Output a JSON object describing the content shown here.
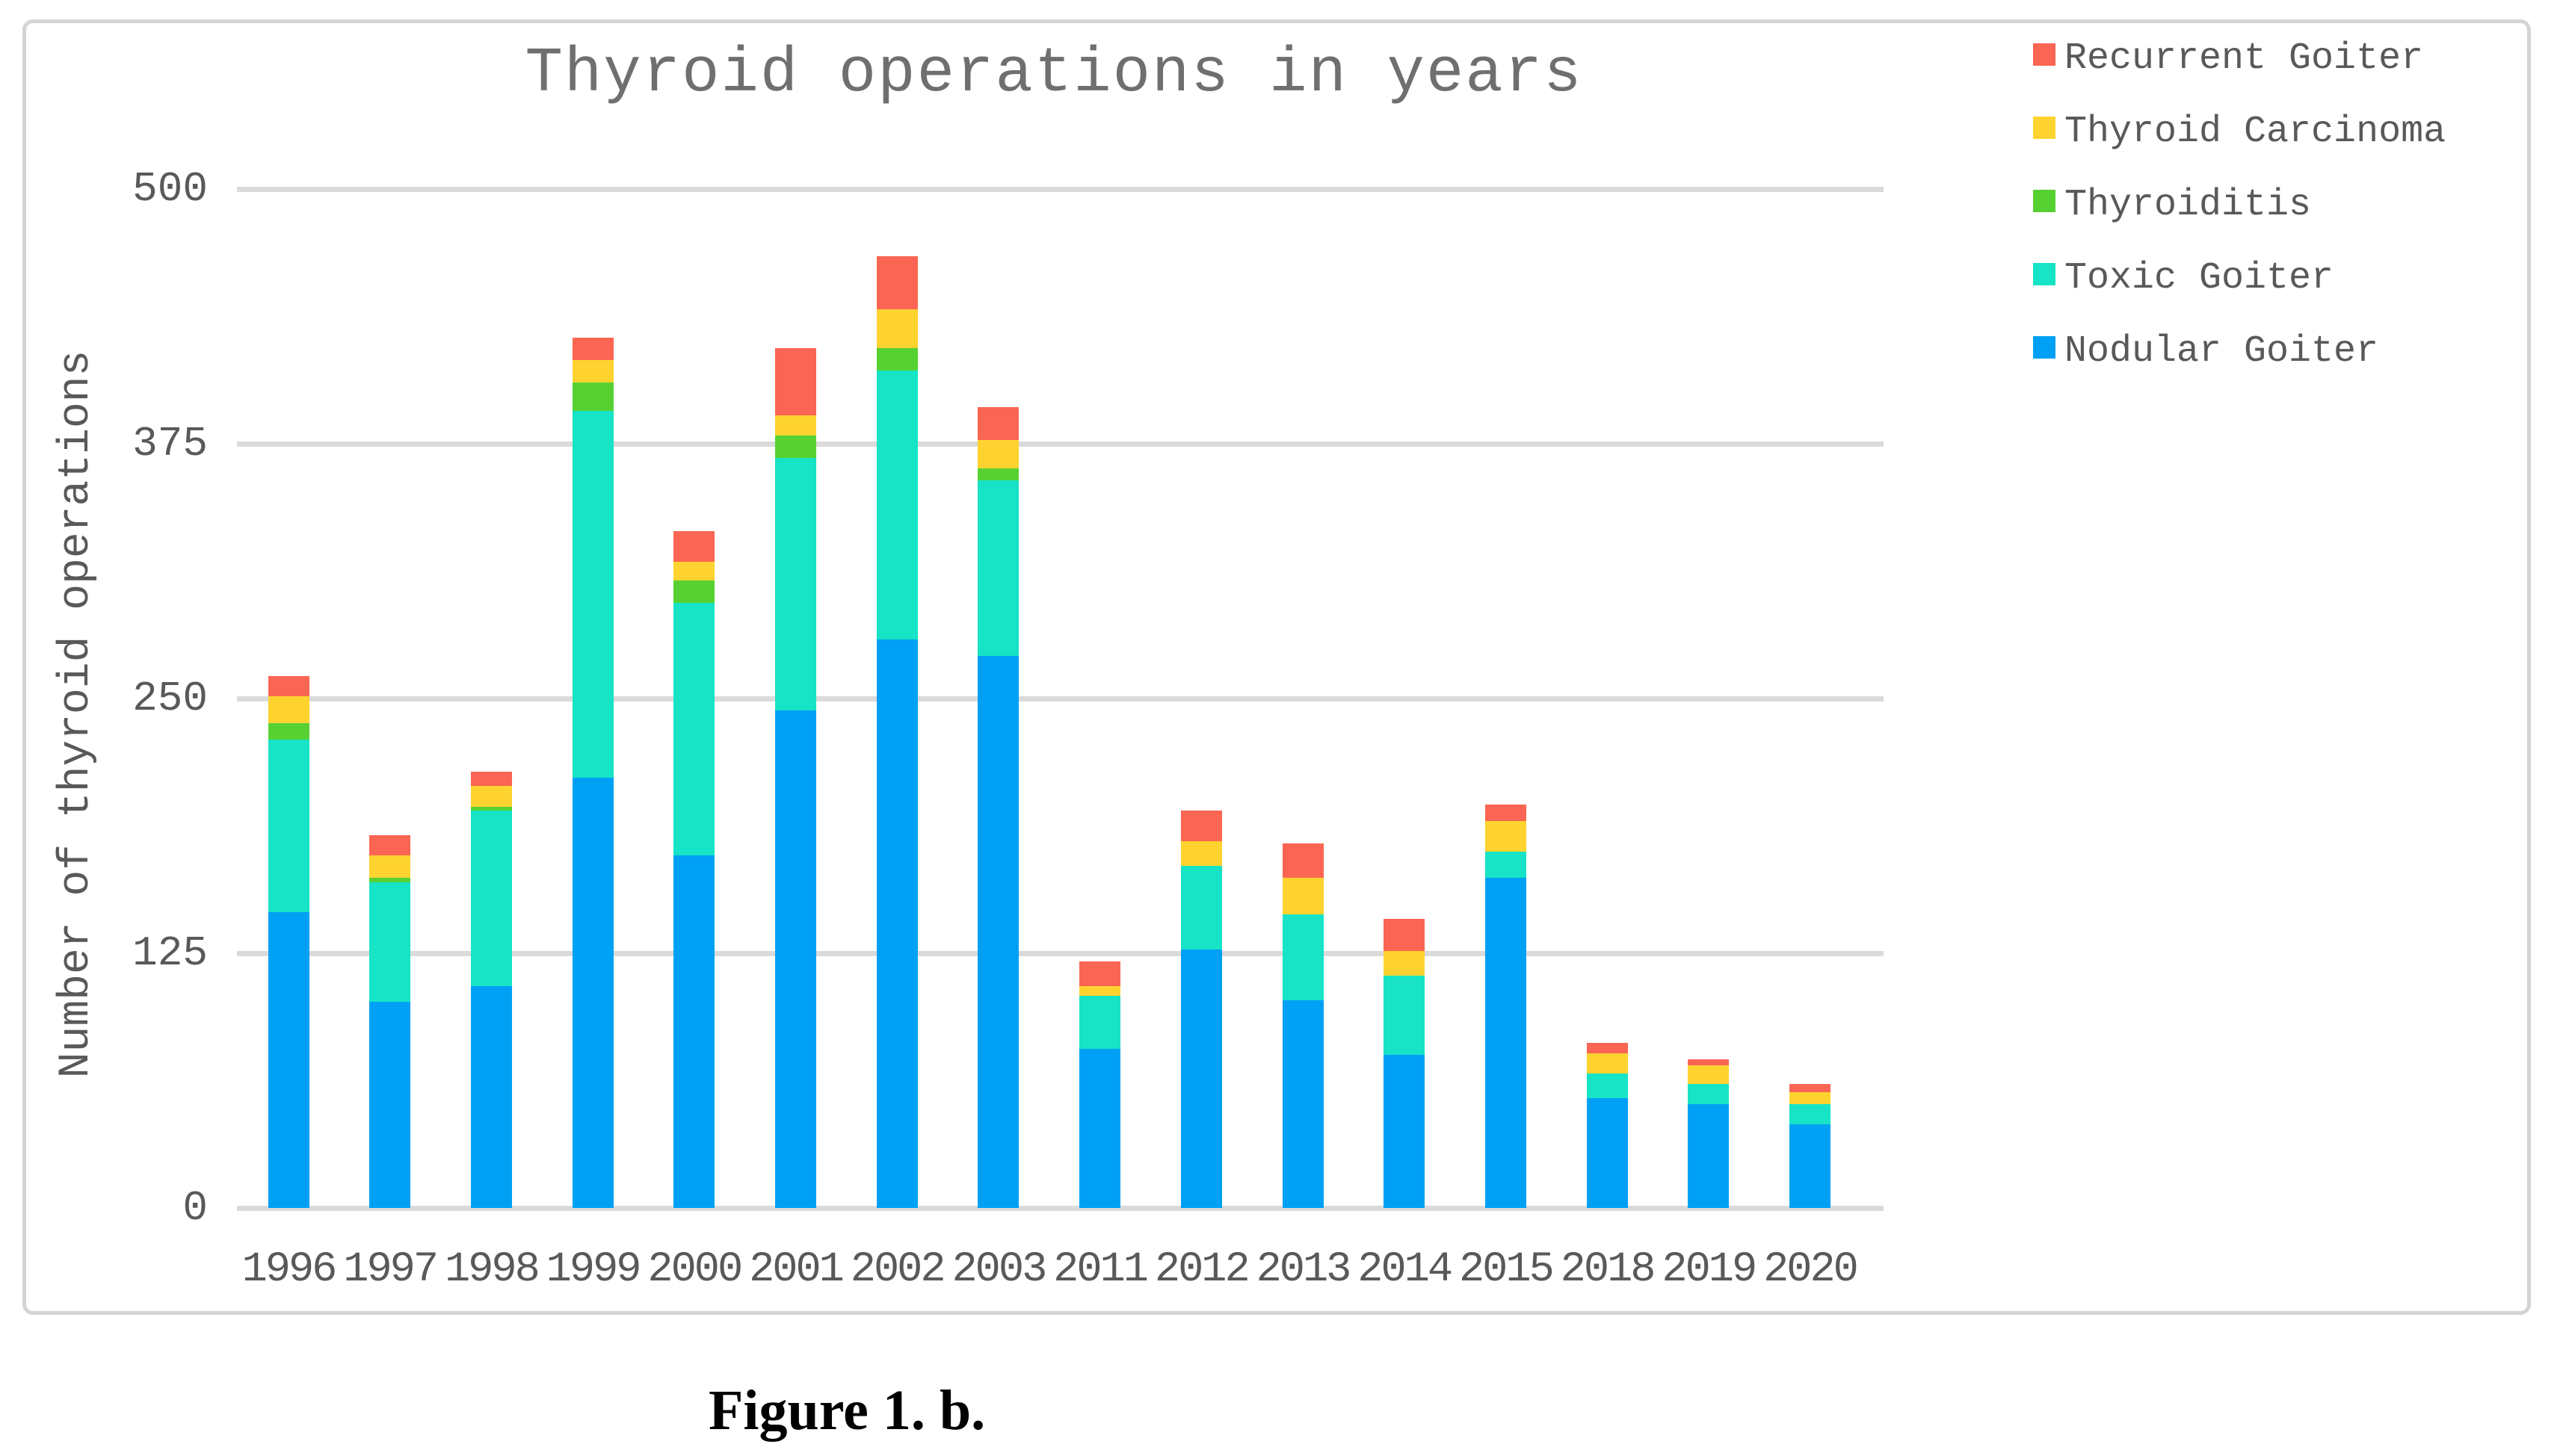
{
  "figure": {
    "caption": "Figure 1. b."
  },
  "chart_data": {
    "type": "bar",
    "stacked": true,
    "title": "Thyroid operations in years",
    "xlabel": "",
    "ylabel": "Number of thyroid operations",
    "ylim": [
      0,
      500
    ],
    "yticks": [
      0,
      125,
      250,
      375,
      500
    ],
    "grid": true,
    "legend_position": "top-right",
    "categories": [
      "1996",
      "1997",
      "1998",
      "1999",
      "2000",
      "2001",
      "2002",
      "2003",
      "2011",
      "2012",
      "2013",
      "2014",
      "2015",
      "2018",
      "2019",
      "2020"
    ],
    "series": [
      {
        "name": "Nodular Goiter",
        "color": "#00A1F4",
        "values": [
          145,
          101,
          109,
          211,
          173,
          244,
          279,
          271,
          78,
          127,
          102,
          75,
          162,
          54,
          51,
          41
        ]
      },
      {
        "name": "Toxic Goiter",
        "color": "#17E3C6",
        "values": [
          85,
          59,
          86,
          180,
          124,
          124,
          132,
          86,
          26,
          41,
          42,
          39,
          13,
          12,
          10,
          10
        ]
      },
      {
        "name": "Thyroiditis",
        "color": "#57D132",
        "values": [
          8,
          2,
          2,
          14,
          11,
          11,
          11,
          6,
          0,
          0,
          0,
          0,
          0,
          0,
          0,
          0
        ]
      },
      {
        "name": "Thyroid Carcinoma",
        "color": "#FFD32F",
        "values": [
          13,
          11,
          10,
          11,
          9,
          10,
          19,
          14,
          5,
          12,
          18,
          12,
          15,
          10,
          9,
          6
        ]
      },
      {
        "name": "Recurrent Goiter",
        "color": "#FB6553",
        "values": [
          10,
          10,
          7,
          11,
          15,
          33,
          26,
          16,
          12,
          15,
          17,
          16,
          8,
          5,
          3,
          4
        ]
      }
    ],
    "legend_order": [
      "Recurrent Goiter",
      "Thyroid Carcinoma",
      "Thyroiditis",
      "Toxic Goiter",
      "Nodular Goiter"
    ],
    "totals": [
      261,
      183,
      214,
      427,
      332,
      422,
      467,
      393,
      121,
      195,
      179,
      142,
      198,
      81,
      73,
      61
    ]
  },
  "colors": {
    "gridline": "#dadada",
    "axis_text": "#595959",
    "title_text": "#6f6f6f",
    "figure_border": "#d4d4d4"
  }
}
